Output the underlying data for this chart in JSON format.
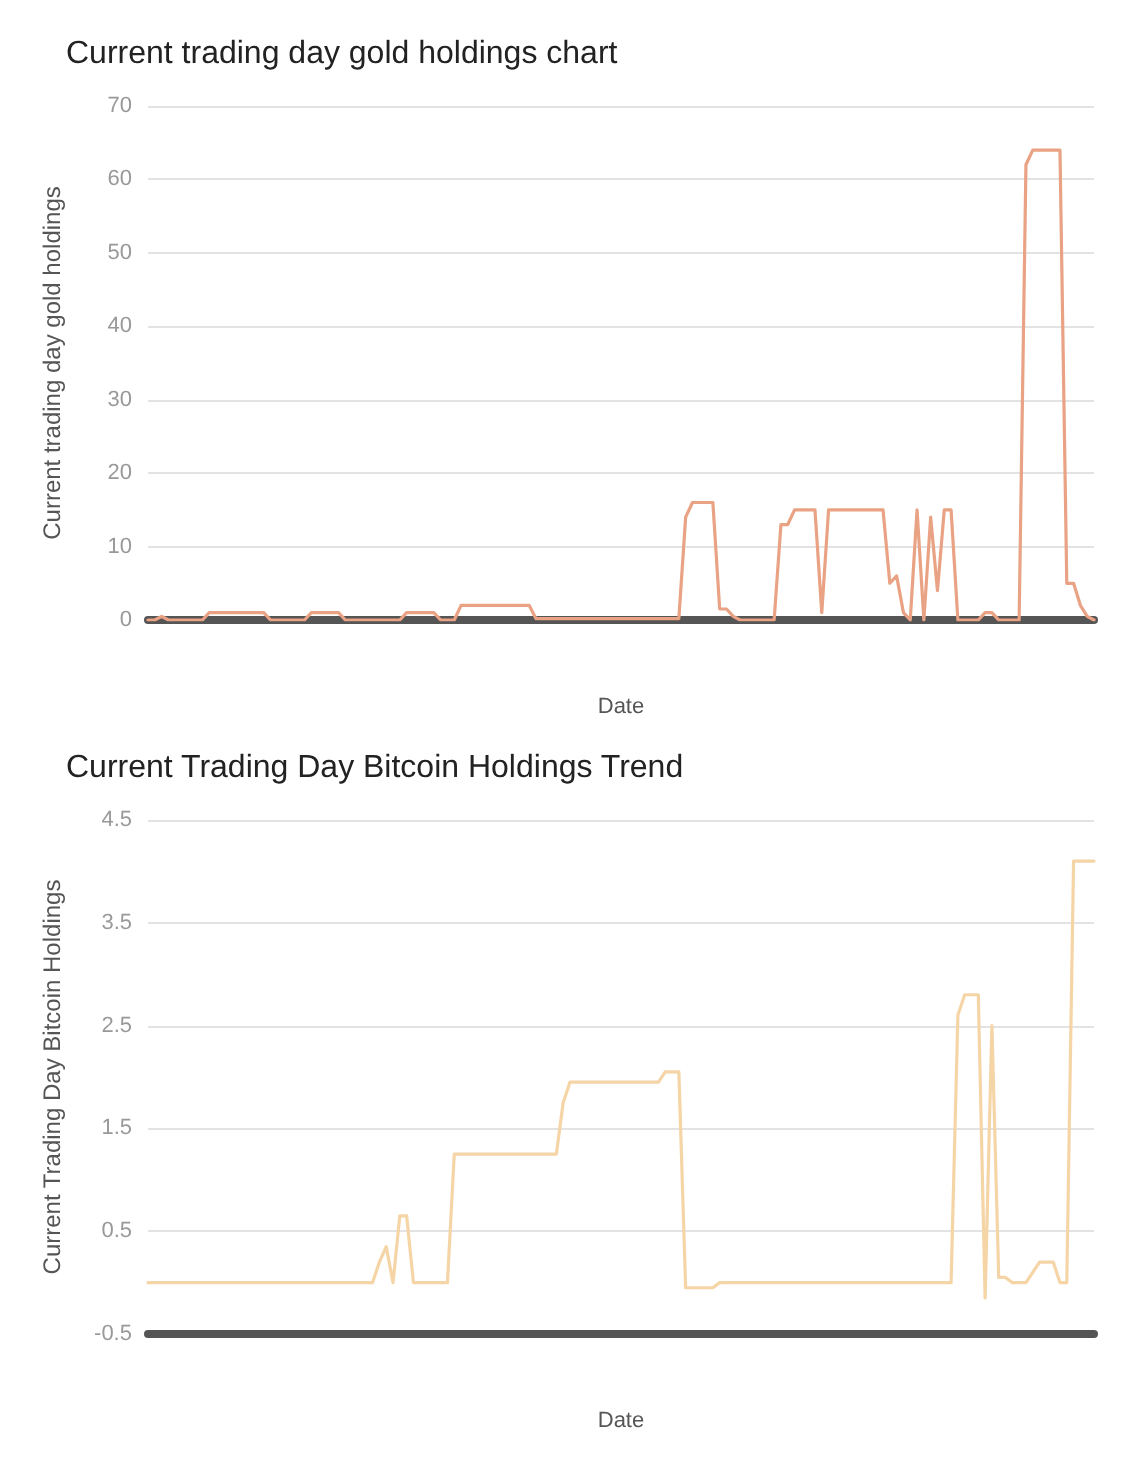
{
  "chart_data": [
    {
      "type": "line",
      "title": "Current trading day gold holdings chart",
      "xlabel": "Date",
      "ylabel": "Current trading day gold holdings",
      "categories": [
        null,
        null,
        null,
        null,
        null,
        null,
        null,
        null,
        null,
        null,
        null,
        null,
        null,
        null,
        null,
        null,
        null,
        null,
        null,
        null,
        null,
        null,
        null,
        null,
        null,
        null,
        null,
        null,
        null,
        null,
        null,
        null,
        null,
        null,
        null,
        null,
        null,
        null,
        null,
        null,
        null,
        null,
        null,
        null,
        null,
        null,
        null,
        null,
        null,
        null,
        null,
        null,
        null,
        null,
        null,
        null,
        null,
        null,
        null,
        null,
        null,
        null,
        null,
        null,
        null,
        null,
        null,
        null,
        null,
        null,
        null,
        null,
        null,
        null,
        null,
        null,
        null,
        null,
        null,
        null,
        null,
        null,
        null,
        null,
        null,
        null,
        null,
        null,
        null,
        null,
        null,
        null,
        null,
        null,
        null,
        null,
        null,
        null,
        null,
        null,
        null,
        null,
        null,
        null,
        null,
        null,
        null,
        null,
        null,
        null,
        null,
        null,
        null,
        null,
        null,
        null,
        null,
        null,
        null,
        null,
        null,
        null,
        null,
        null,
        null,
        null,
        null,
        null,
        null,
        null,
        null,
        null,
        null,
        null,
        null,
        null,
        null,
        null,
        null,
        null
      ],
      "series": [
        {
          "color": "#e9a283",
          "values": [
            0,
            0,
            0.5,
            0,
            0,
            0,
            0,
            0,
            0,
            1,
            1,
            1,
            1,
            1,
            1,
            1,
            1,
            1,
            0,
            0,
            0,
            0,
            0,
            0,
            1,
            1,
            1,
            1,
            1,
            0,
            0,
            0,
            0,
            0,
            0,
            0,
            0,
            0,
            1,
            1,
            1,
            1,
            1,
            0,
            0,
            0,
            2,
            2,
            2,
            2,
            2,
            2,
            2,
            2,
            2,
            2,
            2,
            0.2,
            0.2,
            0.2,
            0.2,
            0.2,
            0.2,
            0.2,
            0.2,
            0.2,
            0.2,
            0.2,
            0.2,
            0.2,
            0.2,
            0.2,
            0.2,
            0.2,
            0.2,
            0.2,
            0.2,
            0.2,
            0.2,
            14,
            16,
            16,
            16,
            16,
            1.5,
            1.5,
            0.5,
            0,
            0,
            0,
            0,
            0,
            0,
            13,
            13,
            15,
            15,
            15,
            15,
            1,
            15,
            15,
            15,
            15,
            15,
            15,
            15,
            15,
            15,
            5,
            6,
            1,
            0,
            15,
            0,
            14,
            4,
            15,
            15,
            0,
            0,
            0,
            0,
            1,
            1,
            0,
            0,
            0,
            0,
            62,
            64,
            64,
            64,
            64,
            64,
            5,
            5,
            2,
            0.5,
            0
          ]
        }
      ],
      "ylim": [
        0,
        70
      ],
      "yticks": [
        0,
        10,
        20,
        30,
        40,
        50,
        60,
        70
      ],
      "grid": "y",
      "marker": "none",
      "line_style": "solid"
    },
    {
      "type": "line",
      "title": "Current Trading Day Bitcoin Holdings Trend",
      "xlabel": "Date",
      "ylabel": "Current Trading Day Bitcoin Holdings",
      "categories": [
        null,
        null,
        null,
        null,
        null,
        null,
        null,
        null,
        null,
        null,
        null,
        null,
        null,
        null,
        null,
        null,
        null,
        null,
        null,
        null,
        null,
        null,
        null,
        null,
        null,
        null,
        null,
        null,
        null,
        null,
        null,
        null,
        null,
        null,
        null,
        null,
        null,
        null,
        null,
        null,
        null,
        null,
        null,
        null,
        null,
        null,
        null,
        null,
        null,
        null,
        null,
        null,
        null,
        null,
        null,
        null,
        null,
        null,
        null,
        null,
        null,
        null,
        null,
        null,
        null,
        null,
        null,
        null,
        null,
        null,
        null,
        null,
        null,
        null,
        null,
        null,
        null,
        null,
        null,
        null,
        null,
        null,
        null,
        null,
        null,
        null,
        null,
        null,
        null,
        null,
        null,
        null,
        null,
        null,
        null,
        null,
        null,
        null,
        null,
        null,
        null,
        null,
        null,
        null,
        null,
        null,
        null,
        null,
        null,
        null,
        null,
        null,
        null,
        null,
        null,
        null,
        null,
        null,
        null,
        null,
        null,
        null,
        null,
        null,
        null,
        null,
        null,
        null,
        null,
        null,
        null,
        null,
        null,
        null,
        null,
        null,
        null,
        null,
        null,
        null
      ],
      "series": [
        {
          "color": "#f5d4a6",
          "values": [
            0,
            0,
            0,
            0,
            0,
            0,
            0,
            0,
            0,
            0,
            0,
            0,
            0,
            0,
            0,
            0,
            0,
            0,
            0,
            0,
            0,
            0,
            0,
            0,
            0,
            0,
            0,
            0,
            0,
            0,
            0,
            0,
            0,
            0,
            0.2,
            0.35,
            0,
            0.65,
            0.65,
            0,
            0,
            0,
            0,
            0,
            0,
            1.25,
            1.25,
            1.25,
            1.25,
            1.25,
            1.25,
            1.25,
            1.25,
            1.25,
            1.25,
            1.25,
            1.25,
            1.25,
            1.25,
            1.25,
            1.25,
            1.75,
            1.95,
            1.95,
            1.95,
            1.95,
            1.95,
            1.95,
            1.95,
            1.95,
            1.95,
            1.95,
            1.95,
            1.95,
            1.95,
            1.95,
            2.05,
            2.05,
            2.05,
            -0.05,
            -0.05,
            -0.05,
            -0.05,
            -0.05,
            0,
            0,
            0,
            0,
            0,
            0,
            0,
            0,
            0,
            0,
            0,
            0,
            0,
            0,
            0,
            0,
            0,
            0,
            0,
            0,
            0,
            0,
            0,
            0,
            0,
            0,
            0,
            0,
            0,
            0,
            0,
            0,
            0,
            0,
            0,
            2.6,
            2.8,
            2.8,
            2.8,
            -0.15,
            2.5,
            0.05,
            0.05,
            0,
            0,
            0,
            0.1,
            0.2,
            0.2,
            0.2,
            0,
            0,
            4.1,
            4.1,
            4.1,
            4.1
          ]
        }
      ],
      "ylim": [
        -0.5,
        4.5
      ],
      "yticks": [
        -0.5,
        0.5,
        1.5,
        2.5,
        3.5,
        4.5
      ],
      "grid": "y",
      "marker": "none",
      "line_style": "solid"
    }
  ]
}
